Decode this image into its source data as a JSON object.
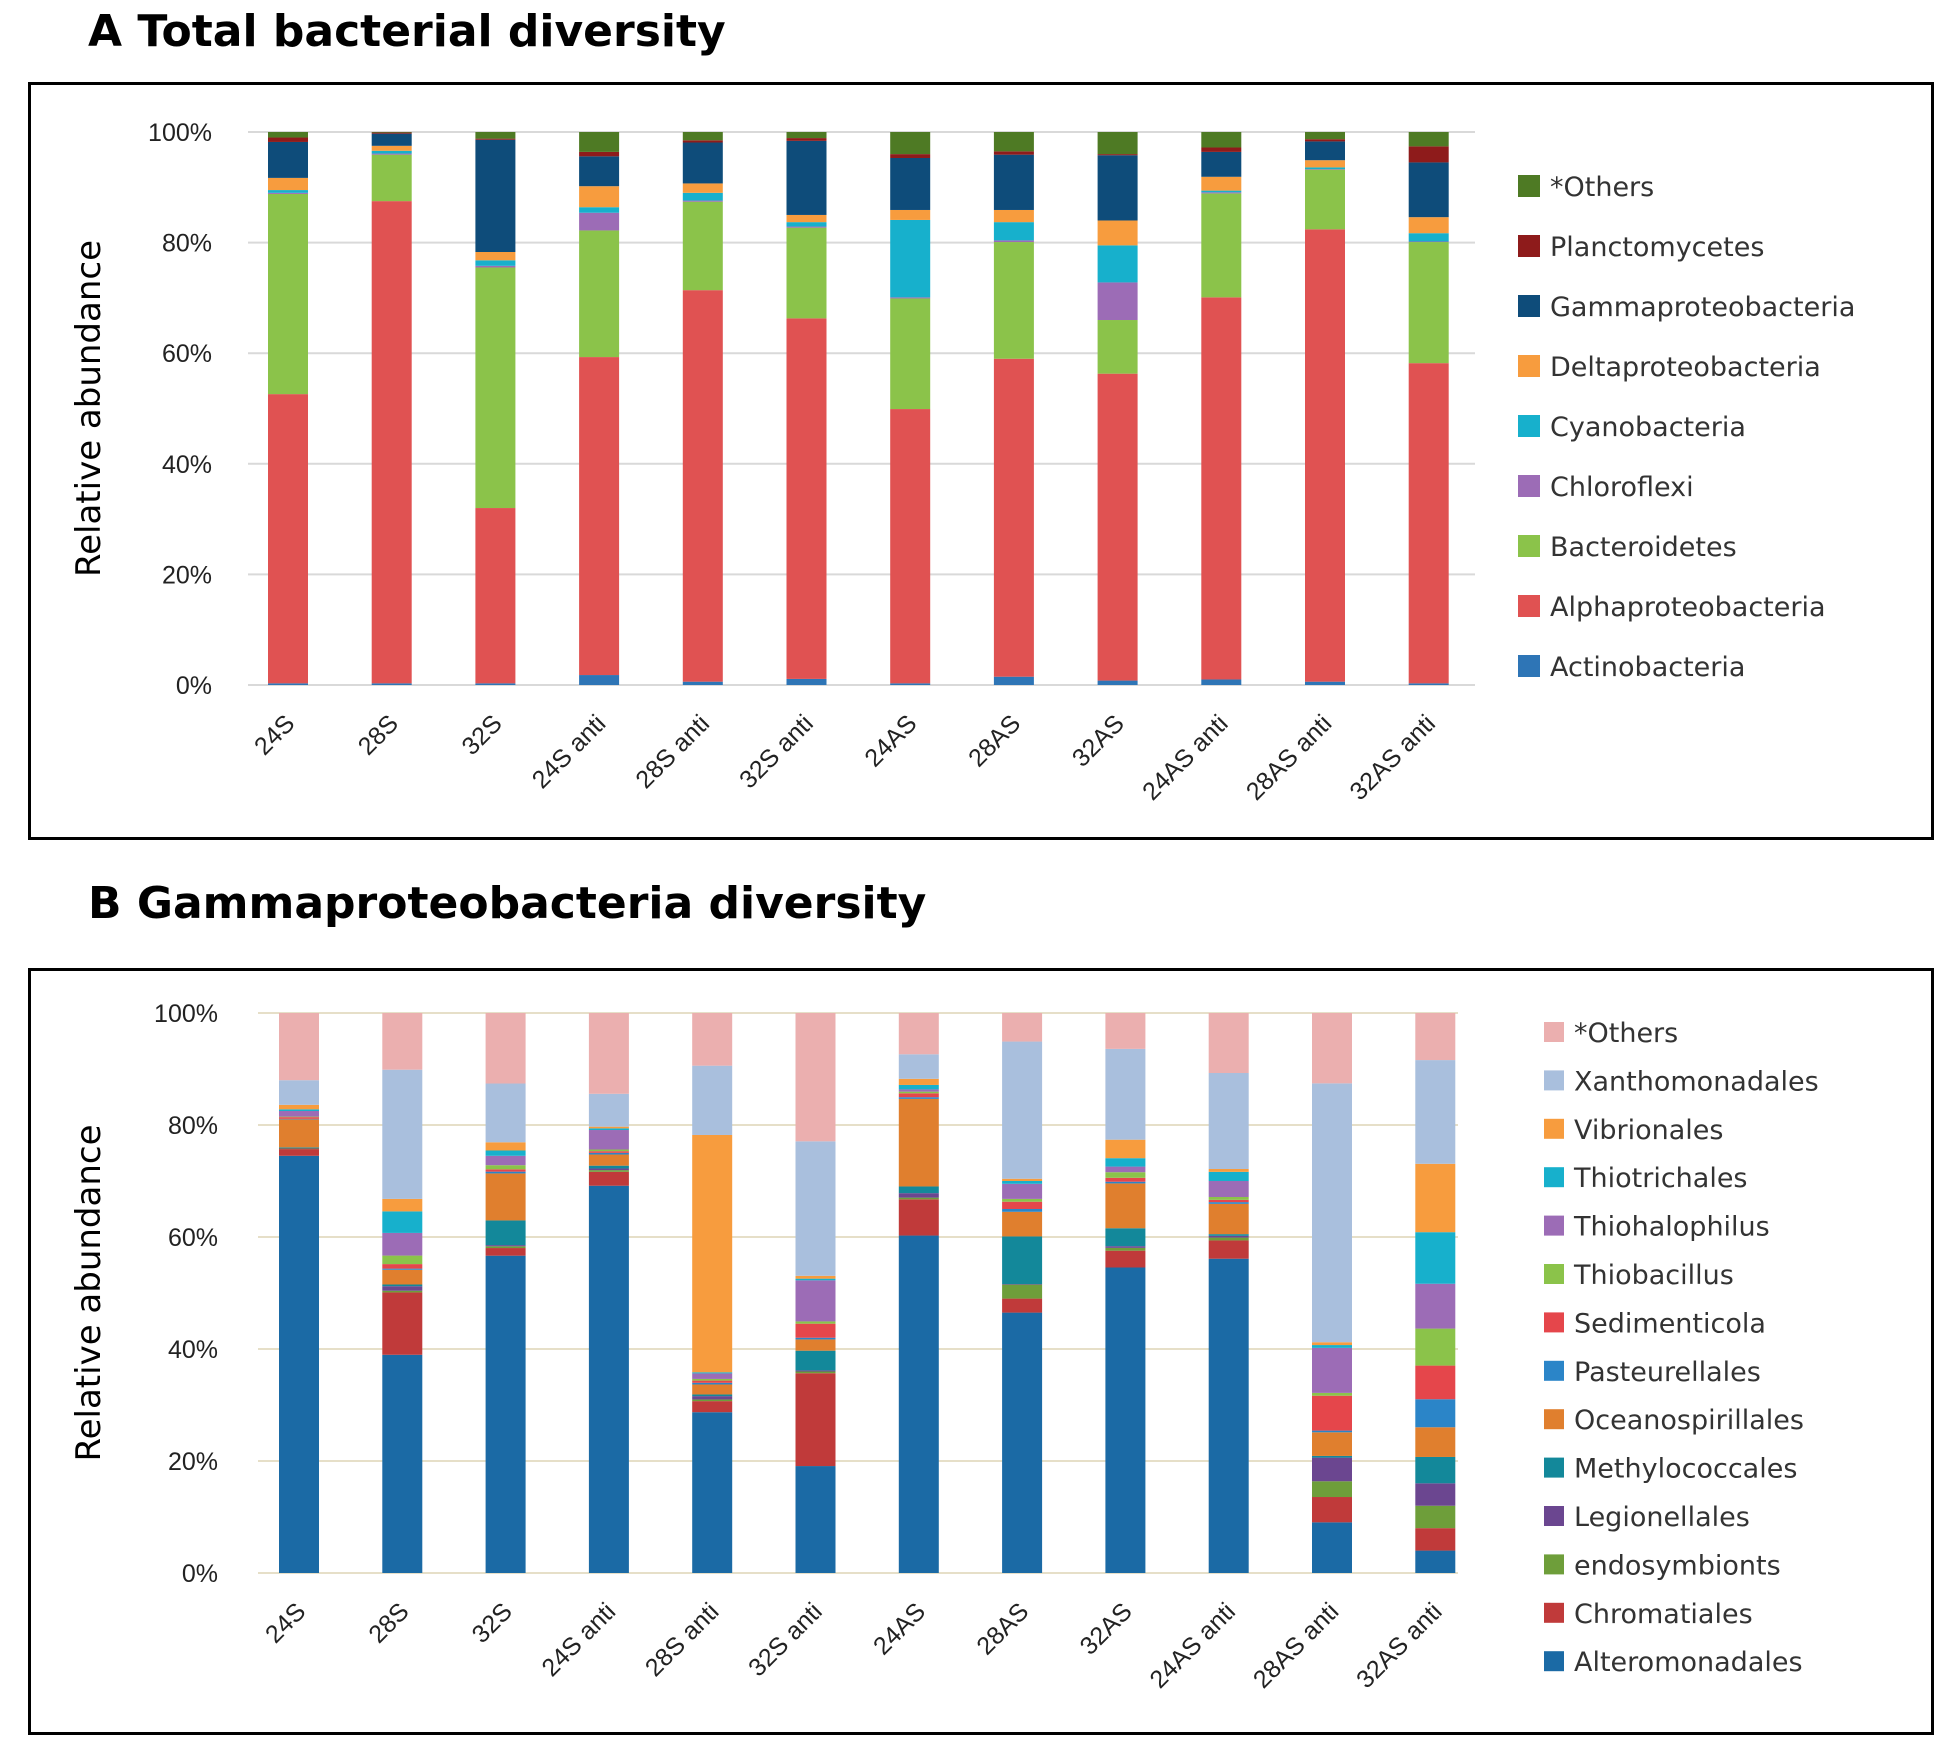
{
  "panels": {
    "a_title": "A  Total bacterial diversity",
    "b_title": "B  Gammaproteobacteria diversity"
  },
  "chart_data": [
    {
      "type": "bar",
      "stacked": true,
      "title": "A  Total bacterial diversity",
      "ylabel": "Relative abundance",
      "xlabel": "",
      "ylim": [
        0,
        100
      ],
      "yticks": [
        "0%",
        "20%",
        "40%",
        "60%",
        "80%",
        "100%"
      ],
      "grid": true,
      "legend_position": "right",
      "categories": [
        "24S",
        "28S",
        "32S",
        "24S anti",
        "28S anti",
        "32S anti",
        "24AS",
        "28AS",
        "32AS",
        "24AS anti",
        "28AS anti",
        "32AS anti"
      ],
      "series": [
        {
          "name": "Actinobacteria",
          "color": "#2E75B6",
          "values": [
            0.3,
            0.3,
            0.3,
            1.8,
            0.6,
            1.1,
            0.3,
            1.5,
            0.8,
            1.0,
            0.6,
            0.3
          ]
        },
        {
          "name": "Alphaproteobacteria",
          "color": "#E05252",
          "values": [
            52.3,
            87.2,
            31.7,
            57.5,
            70.8,
            65.2,
            49.6,
            57.5,
            55.5,
            69.1,
            81.8,
            57.9
          ]
        },
        {
          "name": "Bacteroidetes",
          "color": "#8BC34A",
          "values": [
            36.2,
            8.4,
            43.5,
            22.9,
            16.0,
            16.4,
            20.0,
            21.1,
            9.7,
            18.8,
            10.8,
            21.9
          ]
        },
        {
          "name": "Chloroflexi",
          "color": "#9C6CB6",
          "values": [
            0.2,
            0.2,
            0.3,
            3.2,
            0.2,
            0.2,
            0.2,
            0.3,
            6.8,
            0.2,
            0.1,
            0.1
          ]
        },
        {
          "name": "Cyanobacteria",
          "color": "#17B0CC",
          "values": [
            0.5,
            0.5,
            1.0,
            1.0,
            1.4,
            0.8,
            14.0,
            3.3,
            6.7,
            0.3,
            0.3,
            1.5
          ]
        },
        {
          "name": "Deltaproteobacteria",
          "color": "#F79C3E",
          "values": [
            2.2,
            0.9,
            1.5,
            3.8,
            1.7,
            1.3,
            1.8,
            2.2,
            4.5,
            2.5,
            1.3,
            2.9
          ]
        },
        {
          "name": "Gammaproteobacteria",
          "color": "#0E4C7A",
          "values": [
            6.5,
            2.2,
            20.3,
            5.4,
            7.4,
            13.4,
            9.4,
            10.0,
            11.8,
            4.5,
            3.4,
            9.9
          ]
        },
        {
          "name": "Planctomycetes",
          "color": "#8E1B1B",
          "values": [
            0.8,
            0.2,
            0.2,
            0.8,
            0.4,
            0.5,
            0.7,
            0.6,
            0.2,
            0.8,
            0.4,
            2.9
          ]
        },
        {
          "name": "*Others",
          "color": "#4E7A24",
          "values": [
            1.0,
            0.1,
            1.2,
            3.6,
            1.5,
            1.1,
            4.0,
            3.5,
            4.0,
            2.8,
            1.3,
            2.6
          ]
        }
      ]
    },
    {
      "type": "bar",
      "stacked": true,
      "title": "B  Gammaproteobacteria diversity",
      "ylabel": "Relative abundance",
      "xlabel": "",
      "ylim": [
        0,
        100
      ],
      "yticks": [
        "0%",
        "20%",
        "40%",
        "60%",
        "80%",
        "100%"
      ],
      "grid": true,
      "legend_position": "right",
      "categories": [
        "24S",
        "28S",
        "32S",
        "24S anti",
        "28S anti",
        "32S anti",
        "24AS",
        "28AS",
        "32AS",
        "24AS anti",
        "28AS anti",
        "32AS anti"
      ],
      "series": [
        {
          "name": "Alteromonadales",
          "color": "#1B6AA5",
          "values": [
            74.5,
            38.5,
            54.0,
            69.5,
            29.0,
            19.0,
            60.5,
            46.5,
            54.5,
            55.0,
            9.0,
            4.0
          ]
        },
        {
          "name": "Chromatiales",
          "color": "#C03A3A",
          "values": [
            1.2,
            11.0,
            1.3,
            2.5,
            2.0,
            16.5,
            6.5,
            2.5,
            3.0,
            3.2,
            4.5,
            4.0
          ]
        },
        {
          "name": "endosymbionts",
          "color": "#6E9E3A",
          "values": [
            0.1,
            0.3,
            0.3,
            0.3,
            0.3,
            0.3,
            0.3,
            2.5,
            0.5,
            0.5,
            2.8,
            4.0
          ]
        },
        {
          "name": "Legionellales",
          "color": "#6B4690",
          "values": [
            0.1,
            0.8,
            0.2,
            0.3,
            0.6,
            0.2,
            0.8,
            0.1,
            0.3,
            0.3,
            4.2,
            4.0
          ]
        },
        {
          "name": "Methylococcales",
          "color": "#13889A",
          "values": [
            0.1,
            0.3,
            4.2,
            0.5,
            0.3,
            3.5,
            1.2,
            8.5,
            3.2,
            0.3,
            0.3,
            4.7
          ]
        },
        {
          "name": "Oceanospirillales",
          "color": "#E07F2E",
          "values": [
            5.0,
            2.6,
            8.0,
            2.0,
            1.8,
            2.0,
            15.7,
            4.4,
            8.0,
            5.3,
            4.2,
            5.3
          ]
        },
        {
          "name": "Pasteurellales",
          "color": "#2B85C8",
          "values": [
            0.1,
            0.2,
            0.3,
            0.3,
            0.3,
            0.3,
            0.3,
            0.5,
            0.3,
            0.3,
            0.3,
            5.0
          ]
        },
        {
          "name": "Sedimenticola",
          "color": "#E5464B",
          "values": [
            0.3,
            0.8,
            0.4,
            0.3,
            0.4,
            2.5,
            0.7,
            1.3,
            0.7,
            0.4,
            6.2,
            6.0
          ]
        },
        {
          "name": "Thiobacillus",
          "color": "#8BC34A",
          "values": [
            0.1,
            1.5,
            0.7,
            0.3,
            0.3,
            0.4,
            0.3,
            0.5,
            1.0,
            0.5,
            0.5,
            6.6
          ]
        },
        {
          "name": "Thiohalophilus",
          "color": "#9C6CB6",
          "values": [
            1.0,
            4.0,
            1.6,
            3.5,
            1.0,
            7.3,
            0.4,
            2.7,
            1.0,
            2.8,
            8.0,
            8.0
          ]
        },
        {
          "name": "Thiotrichales",
          "color": "#17B0CC",
          "values": [
            0.3,
            3.8,
            0.9,
            0.3,
            0.2,
            0.3,
            0.8,
            0.5,
            1.5,
            1.6,
            0.5,
            9.2
          ]
        },
        {
          "name": "Vibrionales",
          "color": "#F79C3E",
          "values": [
            0.8,
            2.2,
            1.4,
            0.3,
            42.8,
            0.5,
            1.1,
            0.4,
            3.3,
            0.5,
            0.5,
            12.2
          ]
        },
        {
          "name": "Xanthomonadales",
          "color": "#A9BFDD",
          "values": [
            4.4,
            22.8,
            10.0,
            5.9,
            12.5,
            23.9,
            4.4,
            24.5,
            16.2,
            16.8,
            46.0,
            18.5
          ]
        },
        {
          "name": "*Others",
          "color": "#EBAFAF",
          "values": [
            12.0,
            10.0,
            12.0,
            14.5,
            9.5,
            22.8,
            7.4,
            5.1,
            6.4,
            10.5,
            12.5,
            8.4
          ]
        }
      ]
    }
  ]
}
